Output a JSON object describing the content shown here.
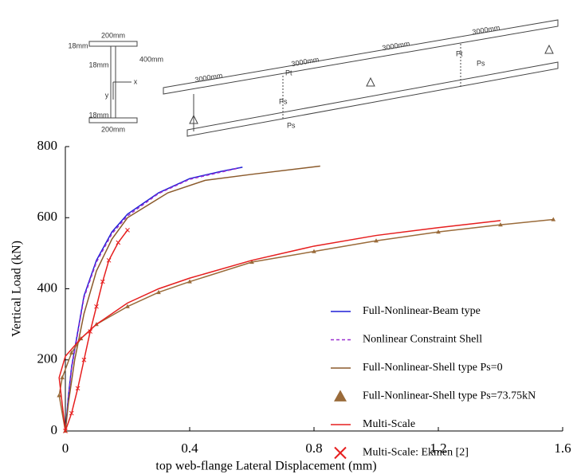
{
  "diagram": {
    "section_labels": [
      "200mm",
      "18mm",
      "18mm",
      "400mm",
      "x",
      "y",
      "18mm",
      "200mm"
    ],
    "span_labels": [
      "3000mm",
      "3000mm",
      "3000mm",
      "3000mm"
    ],
    "load_labels": [
      "Pt",
      "Ps",
      "Ps",
      "Pt",
      "Ps"
    ]
  },
  "chart_data": {
    "type": "line",
    "xlabel": "top web-flange Lateral Displacement (mm)",
    "ylabel": "Vertical Load (kN)",
    "xlim": [
      0,
      1.6
    ],
    "xticks": [
      0,
      0.4,
      0.8,
      1.2,
      1.6
    ],
    "ylim": [
      0,
      800
    ],
    "yticks": [
      0,
      200,
      400,
      600,
      800
    ],
    "legend": "lower right",
    "series": [
      {
        "name": "Full-Nonlinear-Beam type",
        "color": "#1f1fd6",
        "style": "solid",
        "x": [
          0,
          0.005,
          0.01,
          0.02,
          0.04,
          0.06,
          0.1,
          0.15,
          0.2,
          0.3,
          0.4,
          0.5,
          0.57
        ],
        "values": [
          0,
          50,
          100,
          180,
          280,
          380,
          480,
          560,
          610,
          670,
          710,
          730,
          742
        ]
      },
      {
        "name": "Nonlinear Constraint Shell",
        "color": "#9b30d0",
        "style": "dashed",
        "x": [
          0,
          0.005,
          0.01,
          0.02,
          0.04,
          0.06,
          0.1,
          0.15,
          0.2,
          0.3,
          0.4,
          0.5,
          0.56
        ],
        "values": [
          0,
          45,
          95,
          175,
          275,
          375,
          475,
          555,
          605,
          668,
          708,
          728,
          740
        ]
      },
      {
        "name": "Full-Nonlinear-Shell type Ps=0",
        "color": "#8b5a2b",
        "style": "solid",
        "x": [
          0,
          0.01,
          0.03,
          0.06,
          0.1,
          0.15,
          0.2,
          0.33,
          0.45,
          0.6,
          0.82
        ],
        "values": [
          0,
          80,
          200,
          330,
          450,
          540,
          600,
          670,
          705,
          722,
          745
        ]
      },
      {
        "name": "Full-Nonlinear-Shell type Ps=73.75kN",
        "color": "#9a6b3a",
        "style": "triangle",
        "x": [
          0,
          -0.02,
          -0.01,
          0.02,
          0.05,
          0.1,
          0.2,
          0.3,
          0.4,
          0.6,
          0.8,
          1.0,
          1.2,
          1.4,
          1.57
        ],
        "values": [
          0,
          100,
          150,
          220,
          260,
          300,
          350,
          390,
          420,
          475,
          505,
          535,
          560,
          580,
          595
        ]
      },
      {
        "name": "Multi-Scale",
        "color": "#e61e1e",
        "style": "solid",
        "x": [
          0,
          -0.02,
          0,
          0.05,
          0.1,
          0.2,
          0.3,
          0.4,
          0.6,
          0.8,
          1.0,
          1.2,
          1.4
        ],
        "values": [
          0,
          150,
          210,
          260,
          300,
          360,
          400,
          430,
          480,
          520,
          550,
          572,
          592
        ]
      },
      {
        "name": "Multi-Scale: Ekmen [2]",
        "color": "#e61e1e",
        "style": "cross",
        "x": [
          0,
          0.02,
          0.04,
          0.06,
          0.08,
          0.1,
          0.12,
          0.14,
          0.17,
          0.2
        ],
        "values": [
          0,
          50,
          120,
          200,
          280,
          350,
          420,
          480,
          530,
          565
        ]
      }
    ]
  }
}
